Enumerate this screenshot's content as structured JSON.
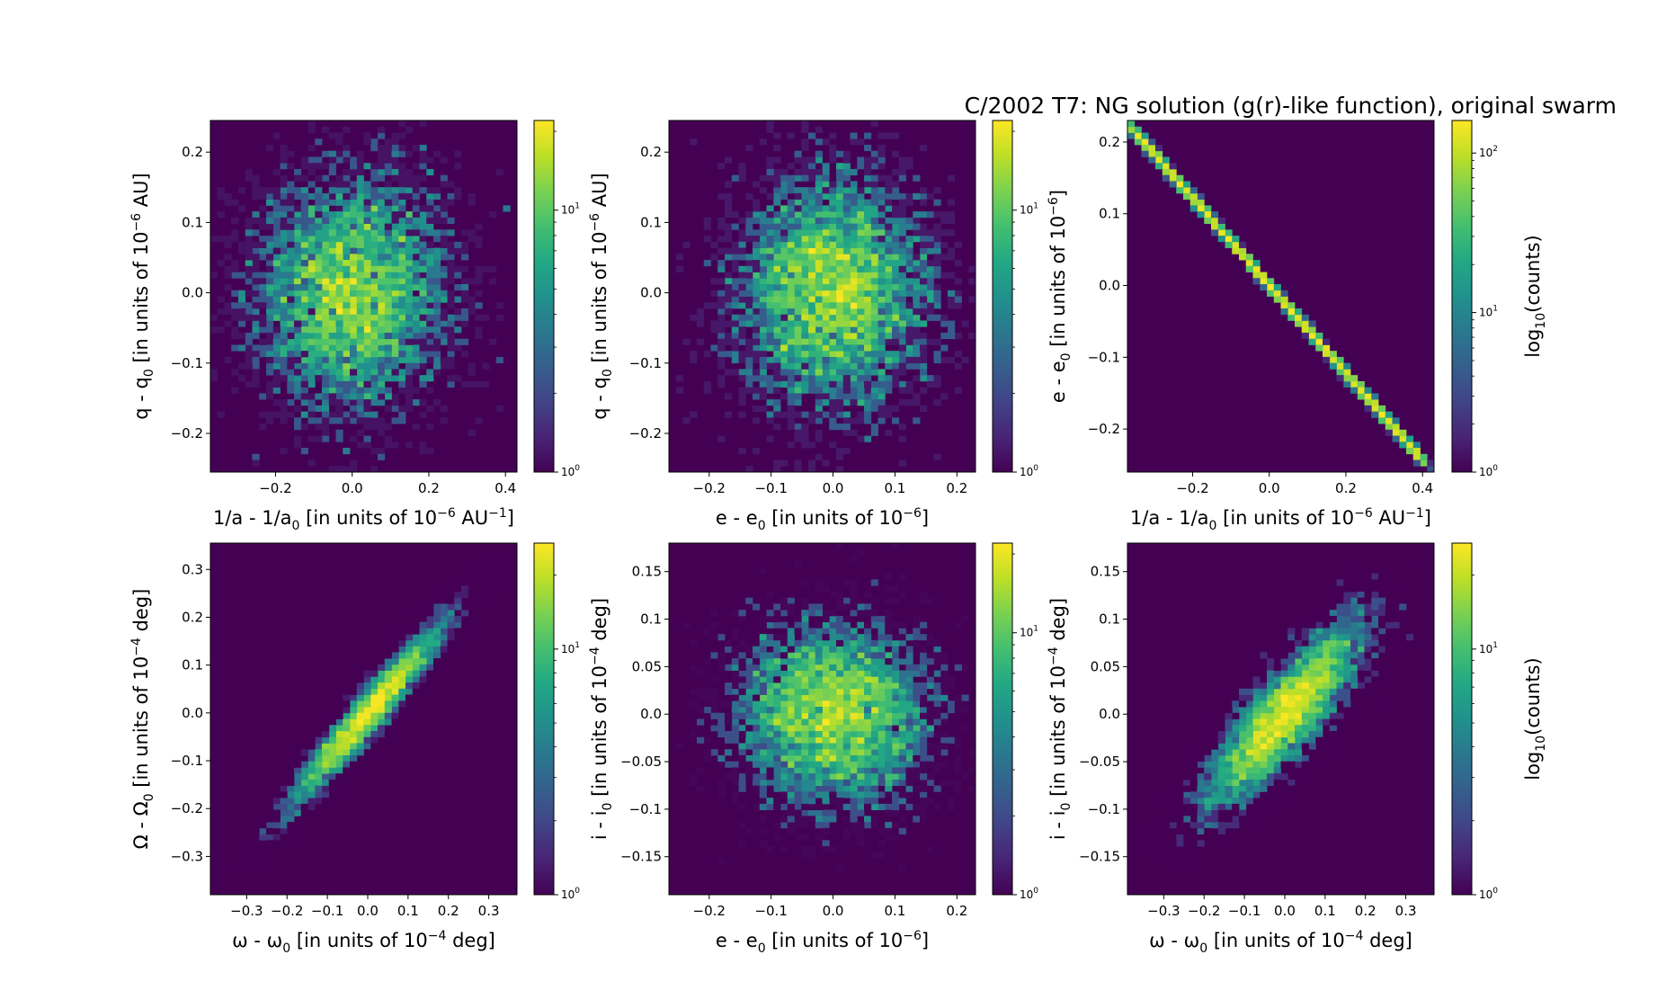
{
  "title": "C/2002 T7:  NG solution (g(r)-like function), original swarm",
  "colors": {
    "viridis_low": "#440154",
    "viridis_mid": "#21918c",
    "viridis_high": "#fde725"
  },
  "labels": {
    "inv_a": {
      "main": "1/a - 1/a",
      "sub": "0",
      "unit_pre": " [in units of 10",
      "sup": "−6",
      "unit_post": " AU",
      "sup2": "−1",
      "close": "]"
    },
    "q": {
      "main": "q - q",
      "sub": "0",
      "unit_pre": " [in units of 10",
      "sup": "−6",
      "unit_post": " AU]"
    },
    "e": {
      "main": "e - e",
      "sub": "0",
      "unit_pre": " [in units of 10",
      "sup": "−6",
      "unit_post": "]"
    },
    "omega": {
      "main": "ω - ω",
      "sub": "0",
      "unit_pre": " [in units of 10",
      "sup": "−4",
      "unit_post": " deg]"
    },
    "Omega": {
      "main": "Ω - Ω",
      "sub": "0",
      "unit_pre": " [in units of 10",
      "sup": "−4",
      "unit_post": " deg]"
    },
    "i": {
      "main": "i - i",
      "sub": "0",
      "unit_pre": " [in units of 10",
      "sup": "−4",
      "unit_post": " deg]"
    },
    "log_counts": {
      "main": "log",
      "sub": "10",
      "unit_post": "(counts)"
    }
  },
  "chart_data": [
    {
      "type": "heatmap",
      "x_key": "inv_a",
      "y_key": "q",
      "xlim": [
        -0.37,
        0.43
      ],
      "ylim": [
        -0.255,
        0.245
      ],
      "xticks": [
        -0.2,
        0.0,
        0.2,
        0.4
      ],
      "yticks": [
        -0.2,
        -0.1,
        0.0,
        0.1,
        0.2
      ],
      "distribution": {
        "kind": "gaussian",
        "sigma_x": 0.13,
        "sigma_y": 0.085,
        "correlation": 0.0,
        "samples": 5000
      },
      "colorbar": {
        "scale": "log",
        "range": [
          1,
          22
        ],
        "ticks": [
          1,
          10
        ],
        "label": ""
      }
    },
    {
      "type": "heatmap",
      "x_key": "e",
      "y_key": "q",
      "xlim": [
        -0.265,
        0.23
      ],
      "ylim": [
        -0.255,
        0.245
      ],
      "xticks": [
        -0.2,
        -0.1,
        0.0,
        0.1,
        0.2
      ],
      "yticks": [
        -0.2,
        -0.1,
        0.0,
        0.1,
        0.2
      ],
      "distribution": {
        "kind": "gaussian",
        "sigma_x": 0.08,
        "sigma_y": 0.085,
        "correlation": 0.0,
        "samples": 5000
      },
      "colorbar": {
        "scale": "log",
        "range": [
          1,
          22
        ],
        "ticks": [
          1,
          10
        ],
        "label": ""
      }
    },
    {
      "type": "heatmap",
      "x_key": "inv_a",
      "y_key": "e",
      "xlim": [
        -0.37,
        0.43
      ],
      "ylim": [
        -0.26,
        0.23
      ],
      "xticks": [
        -0.2,
        0.0,
        0.2,
        0.4
      ],
      "yticks": [
        -0.2,
        -0.1,
        0.0,
        0.1,
        0.2
      ],
      "distribution": {
        "kind": "line",
        "slope": -0.61,
        "x_range": [
          -0.36,
          0.4
        ],
        "samples": 5000
      },
      "colorbar": {
        "scale": "log",
        "range": [
          1,
          160
        ],
        "ticks": [
          1,
          10,
          100
        ],
        "label": "log_counts"
      }
    },
    {
      "type": "heatmap",
      "x_key": "omega",
      "y_key": "Omega",
      "xlim": [
        -0.39,
        0.37
      ],
      "ylim": [
        -0.38,
        0.355
      ],
      "xticks": [
        -0.3,
        -0.2,
        -0.1,
        0.0,
        0.1,
        0.2,
        0.3
      ],
      "yticks": [
        -0.3,
        -0.2,
        -0.1,
        0.0,
        0.1,
        0.2,
        0.3
      ],
      "distribution": {
        "kind": "gaussian",
        "sigma_x": 0.1,
        "sigma_y": 0.1,
        "correlation": 0.96,
        "samples": 5000
      },
      "colorbar": {
        "scale": "log",
        "range": [
          1,
          27
        ],
        "ticks": [
          1,
          10
        ],
        "label": ""
      }
    },
    {
      "type": "heatmap",
      "x_key": "e",
      "y_key": "i",
      "xlim": [
        -0.265,
        0.23
      ],
      "ylim": [
        -0.19,
        0.18
      ],
      "xticks": [
        -0.2,
        -0.1,
        0.0,
        0.1,
        0.2
      ],
      "yticks": [
        -0.15,
        -0.1,
        -0.05,
        0.0,
        0.05,
        0.1,
        0.15
      ],
      "distribution": {
        "kind": "gaussian",
        "sigma_x": 0.08,
        "sigma_y": 0.05,
        "correlation": 0.0,
        "samples": 5000
      },
      "colorbar": {
        "scale": "log",
        "range": [
          1,
          22
        ],
        "ticks": [
          1,
          10
        ],
        "label": ""
      }
    },
    {
      "type": "heatmap",
      "x_key": "omega",
      "y_key": "i",
      "xlim": [
        -0.39,
        0.37
      ],
      "ylim": [
        -0.19,
        0.18
      ],
      "xticks": [
        -0.3,
        -0.2,
        -0.1,
        0.0,
        0.1,
        0.2,
        0.3
      ],
      "yticks": [
        -0.15,
        -0.1,
        -0.05,
        0.0,
        0.05,
        0.1,
        0.15
      ],
      "distribution": {
        "kind": "gaussian",
        "sigma_x": 0.1,
        "sigma_y": 0.05,
        "correlation": 0.85,
        "samples": 5000
      },
      "colorbar": {
        "scale": "log",
        "range": [
          1,
          27
        ],
        "ticks": [
          1,
          10
        ],
        "label": "log_counts"
      }
    }
  ]
}
